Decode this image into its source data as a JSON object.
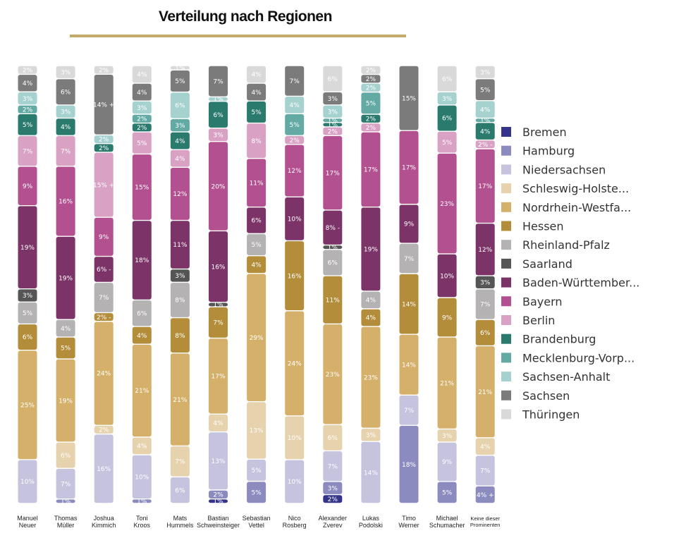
{
  "title": "Verteilung nach Regionen",
  "colors": {
    "title_rule": "#c5a968",
    "label_text": "#ffffff"
  },
  "chart_data": {
    "type": "stacked-bar",
    "title": "Verteilung nach Regionen",
    "legend_position": "right",
    "ylim": [
      0,
      100
    ],
    "grid": false,
    "categories": [
      [
        "Manuel",
        "Neuer"
      ],
      [
        "Thomas",
        "Müller"
      ],
      [
        "Joshua",
        "Kimmich"
      ],
      [
        "Toni",
        "Kroos"
      ],
      [
        "Mats",
        "Hummels"
      ],
      [
        "Bastian",
        "Schweinsteiger"
      ],
      [
        "Sebastian",
        "Vettel"
      ],
      [
        "Nico",
        "Rosberg"
      ],
      [
        "Alexander",
        "Zverev"
      ],
      [
        "Lukas",
        "Podolski"
      ],
      [
        "Timo",
        "Werner"
      ],
      [
        "Michael",
        "Schumacher"
      ],
      [
        "Keine dieser",
        "Prominenten"
      ]
    ],
    "series": [
      {
        "name": "Bremen",
        "color": "#34348a",
        "values": [
          0,
          0,
          0,
          0,
          0,
          1,
          0,
          0,
          2,
          0,
          0,
          0,
          0
        ],
        "labels": [
          "",
          "",
          "",
          "",
          "",
          "1%",
          "",
          "",
          "2%",
          "",
          "",
          "",
          ""
        ]
      },
      {
        "name": "Hamburg",
        "color": "#8b8bc0",
        "values": [
          0,
          1,
          0,
          1,
          0,
          2,
          5,
          0,
          3,
          0,
          18,
          5,
          4
        ],
        "labels": [
          "",
          "1%",
          "",
          "1%",
          "",
          "2%",
          "5%",
          "",
          "3%",
          "",
          "18%",
          "5%",
          "4% +"
        ]
      },
      {
        "name": "Niedersachsen",
        "color": "#c6c3df",
        "values": [
          10,
          7,
          16,
          10,
          6,
          13,
          5,
          10,
          7,
          14,
          7,
          9,
          7
        ],
        "labels": [
          "10%",
          "7%",
          "16%",
          "10%",
          "6%",
          "13%",
          "5%",
          "10%",
          "7%",
          "14%",
          "7%",
          "9%",
          "7%"
        ]
      },
      {
        "name": "Schleswig-Holste...",
        "color": "#e6d2ad",
        "values": [
          0,
          6,
          2,
          4,
          7,
          4,
          13,
          10,
          6,
          3,
          0,
          3,
          4
        ],
        "labels": [
          "",
          "6%",
          "2%",
          "4%",
          "7%",
          "4%",
          "13%",
          "10%",
          "6%",
          "3%",
          "",
          "3%",
          "4%"
        ]
      },
      {
        "name": "Nordrhein-Westfa...",
        "color": "#d5b06a",
        "values": [
          25,
          19,
          24,
          21,
          21,
          17,
          29,
          24,
          23,
          23,
          14,
          21,
          21
        ],
        "labels": [
          "25%",
          "19%",
          "24%",
          "21%",
          "21%",
          "17%",
          "29%",
          "24%",
          "23%",
          "23%",
          "14%",
          "21%",
          "21%"
        ]
      },
      {
        "name": "Hessen",
        "color": "#b38d3a",
        "values": [
          6,
          5,
          2,
          4,
          8,
          7,
          4,
          16,
          11,
          4,
          14,
          9,
          6
        ],
        "labels": [
          "6%",
          "5%",
          "2% -",
          "4%",
          "8%",
          "7%",
          "4%",
          "16%",
          "11%",
          "4%",
          "14%",
          "9%",
          "6%"
        ]
      },
      {
        "name": "Rheinland-Pfalz",
        "color": "#b4b2b2",
        "values": [
          5,
          4,
          7,
          6,
          8,
          0,
          5,
          0,
          6,
          4,
          7,
          0,
          7
        ],
        "labels": [
          "5%",
          "4%",
          "7%",
          "6%",
          "8%",
          "",
          "5%",
          "",
          "6%",
          "4%",
          "7%",
          "",
          "7%"
        ]
      },
      {
        "name": "Saarland",
        "color": "#555555",
        "values": [
          3,
          0,
          0,
          0,
          3,
          1,
          0,
          0,
          1,
          0,
          0,
          0,
          3
        ],
        "labels": [
          "3%",
          "",
          "",
          "",
          "3%",
          "1%",
          "",
          "",
          "1%",
          "",
          "",
          "",
          "3%"
        ]
      },
      {
        "name": "Baden-Württember...",
        "color": "#7c3468",
        "values": [
          19,
          19,
          6,
          18,
          11,
          16,
          6,
          10,
          8,
          19,
          9,
          10,
          12
        ],
        "labels": [
          "19%",
          "19%",
          "6% -",
          "18%",
          "11%",
          "16%",
          "6%",
          "10%",
          "8% -",
          "19%",
          "9%",
          "10%",
          "12%"
        ]
      },
      {
        "name": "Bayern",
        "color": "#b3508f",
        "values": [
          9,
          16,
          9,
          15,
          12,
          20,
          11,
          12,
          17,
          17,
          17,
          23,
          17
        ],
        "labels": [
          "9%",
          "16%",
          "9%",
          "15%",
          "12%",
          "20%",
          "11%",
          "12%",
          "17%",
          "17%",
          "17%",
          "23%",
          "17%"
        ]
      },
      {
        "name": "Berlin",
        "color": "#d9a2c5",
        "values": [
          7,
          7,
          15,
          5,
          4,
          3,
          8,
          2,
          2,
          2,
          0,
          5,
          2
        ],
        "labels": [
          "7%",
          "7%",
          "15% +",
          "5%",
          "4%",
          "3%",
          "8%",
          "2%",
          "2%",
          "2%",
          "",
          "5%",
          "2% -"
        ]
      },
      {
        "name": "Brandenburg",
        "color": "#2a7a6e",
        "values": [
          5,
          4,
          2,
          2,
          4,
          6,
          5,
          0,
          1,
          2,
          0,
          6,
          4
        ],
        "labels": [
          "5%",
          "4%",
          "2%",
          "2%",
          "4%",
          "6%",
          "5%",
          "",
          "1%",
          "2%",
          "",
          "6%",
          "4%"
        ]
      },
      {
        "name": "Mecklenburg-Vorp...",
        "color": "#62aaa3",
        "values": [
          2,
          0,
          0,
          2,
          3,
          0,
          0,
          5,
          1,
          5,
          0,
          0,
          1
        ],
        "labels": [
          "2%",
          "",
          "",
          "2%",
          "3%",
          "",
          "",
          "5%",
          "1%",
          "5%",
          "",
          "",
          "1%"
        ]
      },
      {
        "name": "Sachsen-Anhalt",
        "color": "#a5d2cf",
        "values": [
          3,
          3,
          2,
          3,
          6,
          1,
          0,
          4,
          3,
          2,
          0,
          3,
          4
        ],
        "labels": [
          "3%",
          "3%",
          "2%",
          "3%",
          "6%",
          "1%",
          "",
          "4%",
          "3%",
          "2%",
          "",
          "3%",
          "4%"
        ]
      },
      {
        "name": "Sachsen",
        "color": "#7b7b7b",
        "values": [
          4,
          6,
          14,
          4,
          5,
          7,
          4,
          7,
          3,
          2,
          15,
          0,
          5
        ],
        "labels": [
          "4%",
          "6%",
          "14% +",
          "4%",
          "5%",
          "7%",
          "4%",
          "7%",
          "3%",
          "2%",
          "15%",
          "",
          "5%"
        ]
      },
      {
        "name": "Thüringen",
        "color": "#d9d9d9",
        "values": [
          2,
          3,
          2,
          4,
          1,
          0,
          4,
          0,
          6,
          2,
          0,
          6,
          3
        ],
        "labels": [
          "2%",
          "3%",
          "2%",
          "4%",
          "1%",
          "",
          "4%",
          "",
          "6%",
          "2%",
          "",
          "6%",
          "3%"
        ]
      }
    ]
  }
}
